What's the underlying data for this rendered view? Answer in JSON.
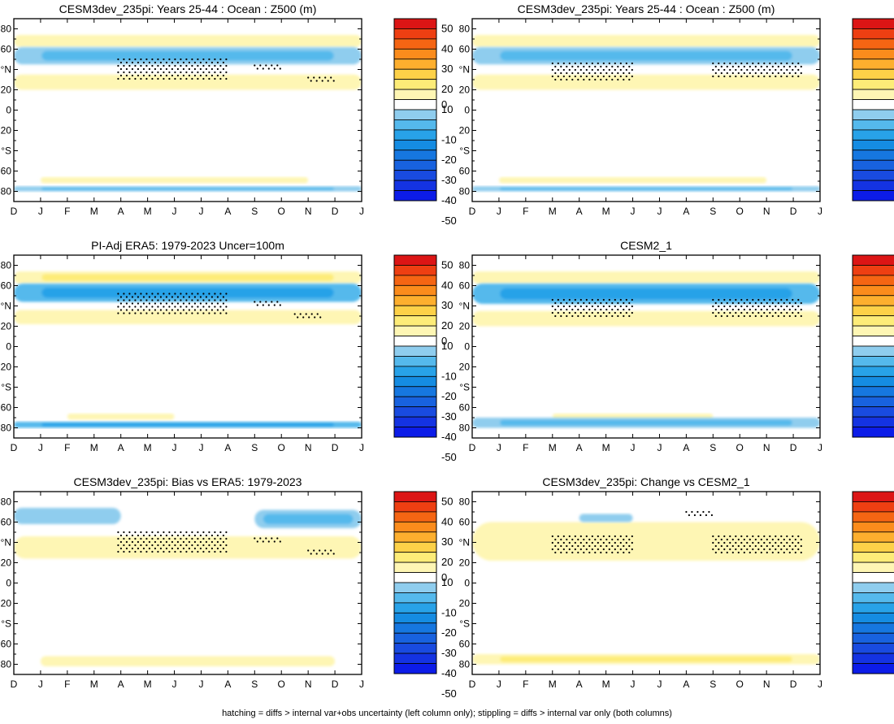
{
  "footnote": "hatching = diffs > internal var+obs uncertainty (left column only); stippling = diffs > internal var only (both columns)",
  "colorbar": {
    "levels": [
      50,
      40,
      30,
      20,
      10,
      0,
      -10,
      -20,
      -30,
      -40,
      -50
    ],
    "labels": [
      "50",
      "40",
      "30",
      "20",
      "10",
      "0",
      "-10",
      "-20",
      "-30",
      "-40",
      "-50"
    ],
    "colors": [
      "#dc1515",
      "#ee3f12",
      "#f56513",
      "#fb8c1c",
      "#fdaf2e",
      "#fdd148",
      "#fdec78",
      "#fef6b4",
      "#ffffff",
      "#8fcdee",
      "#55b9ec",
      "#28a2e8",
      "#158ce2",
      "#1677e0",
      "#1862df",
      "#194be0",
      "#1433e2",
      "#0c1ce8"
    ]
  },
  "axes": {
    "x_ticks": [
      "D",
      "J",
      "F",
      "M",
      "A",
      "M",
      "J",
      "J",
      "A",
      "S",
      "O",
      "N",
      "D",
      "J"
    ],
    "y_ticks": [
      "80",
      "60",
      "°N",
      "20",
      "0",
      "20",
      "°S",
      "60",
      "80"
    ]
  },
  "chart_data": [
    {
      "type": "heatmap",
      "title": "CESM3dev_235pi: Years 25-44 : Ocean : Z500 (m)",
      "x": [
        "D",
        "J",
        "F",
        "M",
        "A",
        "M",
        "J",
        "J",
        "A",
        "S",
        "O",
        "N",
        "D",
        "J"
      ],
      "y_range": [
        -90,
        90
      ],
      "z_range": [
        -50,
        50
      ],
      "bands": [
        {
          "lat": [
            62,
            74
          ],
          "value": 10,
          "x": [
            0,
            13
          ],
          "note": "yellow band, weaker mid-year"
        },
        {
          "lat": [
            45,
            62
          ],
          "value": -20,
          "x": [
            0,
            13
          ],
          "note": "blue band, strongest A-J"
        },
        {
          "lat": [
            20,
            35
          ],
          "value": 10,
          "x": [
            0,
            13
          ]
        },
        {
          "lat": [
            -72,
            -66
          ],
          "value": 10,
          "x": [
            1,
            11
          ]
        },
        {
          "lat": [
            -80,
            -75
          ],
          "value": -20,
          "x": [
            0,
            13
          ]
        }
      ],
      "stippling": [
        {
          "x": [
            3.9,
            8
          ],
          "lat": [
            30,
            50
          ]
        },
        {
          "x": [
            9,
            10
          ],
          "lat": [
            40,
            44
          ]
        },
        {
          "x": [
            11,
            12
          ],
          "lat": [
            28,
            32
          ]
        }
      ]
    },
    {
      "type": "heatmap",
      "title": "CESM3dev_235pi: Years 25-44 : Ocean : Z500 (m)",
      "x": [
        "D",
        "J",
        "F",
        "M",
        "A",
        "M",
        "J",
        "J",
        "A",
        "S",
        "O",
        "N",
        "D",
        "J"
      ],
      "y_range": [
        -90,
        90
      ],
      "z_range": [
        -50,
        50
      ],
      "bands": [
        {
          "lat": [
            62,
            74
          ],
          "value": 10,
          "x": [
            0,
            13
          ]
        },
        {
          "lat": [
            45,
            62
          ],
          "value": -20,
          "x": [
            0,
            13
          ]
        },
        {
          "lat": [
            20,
            35
          ],
          "value": 10,
          "x": [
            0,
            13
          ]
        },
        {
          "lat": [
            -72,
            -66
          ],
          "value": 10,
          "x": [
            1,
            11
          ]
        },
        {
          "lat": [
            -80,
            -75
          ],
          "value": -20,
          "x": [
            0,
            13
          ]
        }
      ],
      "stippling": [
        {
          "x": [
            3,
            6
          ],
          "lat": [
            30,
            46
          ]
        },
        {
          "x": [
            9,
            12.3
          ],
          "lat": [
            32,
            46
          ]
        }
      ]
    },
    {
      "type": "heatmap",
      "title": "PI-Adj ERA5: 1979-2023 Uncer=100m",
      "x": [
        "D",
        "J",
        "F",
        "M",
        "A",
        "M",
        "J",
        "J",
        "A",
        "S",
        "O",
        "N",
        "D",
        "J"
      ],
      "y_range": [
        -90,
        90
      ],
      "z_range": [
        -50,
        50
      ],
      "bands": [
        {
          "lat": [
            62,
            74
          ],
          "value": 15,
          "x": [
            0,
            13
          ]
        },
        {
          "lat": [
            44,
            62
          ],
          "value": -25,
          "x": [
            0,
            13
          ]
        },
        {
          "lat": [
            22,
            36
          ],
          "value": 10,
          "x": [
            0,
            13
          ]
        },
        {
          "lat": [
            -72,
            -66
          ],
          "value": 10,
          "x": [
            2,
            6
          ]
        },
        {
          "lat": [
            -80,
            -74
          ],
          "value": -30,
          "x": [
            0,
            13
          ]
        }
      ],
      "stippling": [
        {
          "x": [
            3.9,
            8
          ],
          "lat": [
            30,
            52
          ]
        },
        {
          "x": [
            9,
            10
          ],
          "lat": [
            40,
            44
          ]
        },
        {
          "x": [
            10.5,
            11.5
          ],
          "lat": [
            28,
            32
          ]
        }
      ]
    },
    {
      "type": "heatmap",
      "title": "CESM2_1",
      "x": [
        "D",
        "J",
        "F",
        "M",
        "A",
        "M",
        "J",
        "J",
        "A",
        "S",
        "O",
        "N",
        "D",
        "J"
      ],
      "y_range": [
        -90,
        90
      ],
      "z_range": [
        -50,
        50
      ],
      "bands": [
        {
          "lat": [
            62,
            74
          ],
          "value": 10,
          "x": [
            0,
            13
          ]
        },
        {
          "lat": [
            42,
            62
          ],
          "value": -25,
          "x": [
            0,
            13
          ]
        },
        {
          "lat": [
            20,
            35
          ],
          "value": 10,
          "x": [
            0,
            13
          ]
        },
        {
          "lat": [
            -72,
            -66
          ],
          "value": 5,
          "x": [
            3,
            9
          ]
        },
        {
          "lat": [
            -80,
            -70
          ],
          "value": -20,
          "x": [
            0,
            13
          ]
        }
      ],
      "stippling": [
        {
          "x": [
            3,
            6
          ],
          "lat": [
            28,
            46
          ]
        },
        {
          "x": [
            9,
            12.3
          ],
          "lat": [
            30,
            46
          ]
        }
      ]
    },
    {
      "type": "heatmap",
      "title": "CESM3dev_235pi: Bias vs ERA5: 1979-2023",
      "x": [
        "D",
        "J",
        "F",
        "M",
        "A",
        "M",
        "J",
        "J",
        "A",
        "S",
        "O",
        "N",
        "D",
        "J"
      ],
      "y_range": [
        -90,
        90
      ],
      "z_range": [
        -50,
        50
      ],
      "bands": [
        {
          "lat": [
            58,
            74
          ],
          "value": -10,
          "x": [
            0,
            4
          ]
        },
        {
          "lat": [
            54,
            72
          ],
          "value": -15,
          "x": [
            9,
            13
          ]
        },
        {
          "lat": [
            24,
            46
          ],
          "value": 10,
          "x": [
            0,
            13
          ]
        },
        {
          "lat": [
            -82,
            -72
          ],
          "value": 5,
          "x": [
            1,
            12
          ]
        }
      ],
      "stippling": [
        {
          "x": [
            3.9,
            8
          ],
          "lat": [
            30,
            50
          ]
        },
        {
          "x": [
            9,
            10
          ],
          "lat": [
            40,
            44
          ]
        },
        {
          "x": [
            11,
            12
          ],
          "lat": [
            28,
            32
          ]
        }
      ]
    },
    {
      "type": "heatmap",
      "title": "CESM3dev_235pi: Change vs CESM2_1",
      "x": [
        "D",
        "J",
        "F",
        "M",
        "A",
        "M",
        "J",
        "J",
        "A",
        "S",
        "O",
        "N",
        "D",
        "J"
      ],
      "y_range": [
        -90,
        90
      ],
      "z_range": [
        -50,
        50
      ],
      "bands": [
        {
          "lat": [
            22,
            60
          ],
          "value": 10,
          "x": [
            0,
            13
          ]
        },
        {
          "lat": [
            60,
            68
          ],
          "value": -10,
          "x": [
            4,
            6
          ]
        },
        {
          "lat": [
            -80,
            -70
          ],
          "value": 15,
          "x": [
            0,
            13
          ]
        }
      ],
      "stippling": [
        {
          "x": [
            3,
            6
          ],
          "lat": [
            28,
            46
          ]
        },
        {
          "x": [
            9,
            12.3
          ],
          "lat": [
            30,
            46
          ]
        },
        {
          "x": [
            8,
            9
          ],
          "lat": [
            66,
            70
          ]
        }
      ]
    }
  ]
}
